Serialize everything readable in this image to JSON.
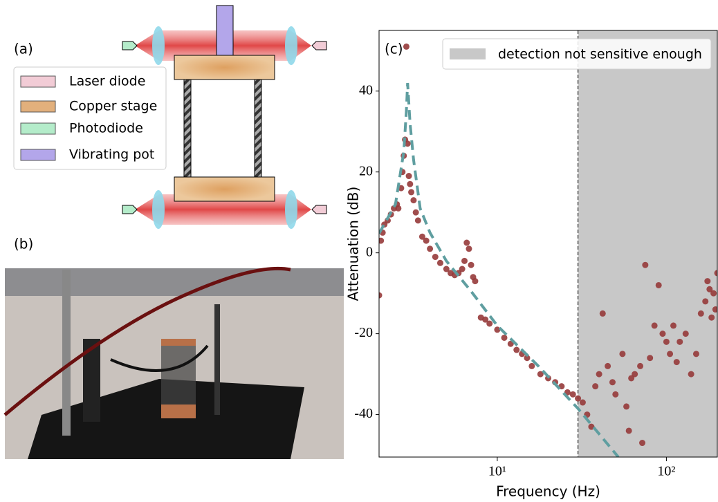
{
  "panels": {
    "a_label": "(a)",
    "b_label": "(b)",
    "legend": [
      {
        "label": "Laser diode",
        "color": "#f2ccd6"
      },
      {
        "label": "Copper stage",
        "color": "#e2b07c"
      },
      {
        "label": "Photodiode",
        "color": "#b4ecca"
      },
      {
        "label": "Vibrating pot",
        "color": "#b3a6ea"
      }
    ]
  },
  "chart_data": {
    "type": "scatter",
    "panel_label": "(c)",
    "x_label": "Frequency (Hz)",
    "y_label": "Attenuation (dB)",
    "xscale": "log",
    "xlim": [
      2,
      200
    ],
    "ylim": [
      -50.5,
      55
    ],
    "xticks": [
      {
        "value": 10,
        "label": "10¹"
      },
      {
        "value": 100,
        "label": "10²"
      }
    ],
    "yticks": [
      -40,
      -20,
      0,
      20,
      40
    ],
    "shaded_region": {
      "x": [
        30,
        200
      ],
      "label": "detection not sensitive enough",
      "color": "#c8c8c8"
    },
    "vline": 30,
    "legend_position": "upper right",
    "series": [
      {
        "type": "scatter",
        "color": "#963a3a",
        "x": [
          2,
          2.05,
          2.1,
          2.15,
          2.25,
          2.35,
          2.45,
          2.55,
          2.6,
          2.7,
          2.75,
          2.8,
          2.85,
          2.9,
          2.95,
          3.0,
          3.05,
          3.1,
          3.2,
          3.3,
          3.4,
          3.6,
          3.8,
          4,
          4.3,
          4.6,
          5,
          5.3,
          5.6,
          5.9,
          6.2,
          6.4,
          6.6,
          6.8,
          7,
          7.2,
          7.4,
          8,
          8.5,
          9,
          10,
          11,
          12,
          13,
          14,
          15,
          16,
          18,
          20,
          22,
          24,
          26,
          28,
          30,
          32,
          34,
          36,
          38,
          40,
          42,
          45,
          48,
          50,
          55,
          58,
          60,
          62,
          65,
          70,
          72,
          75,
          80,
          85,
          90,
          95,
          100,
          105,
          110,
          115,
          120,
          130,
          140,
          150,
          160,
          170,
          175,
          180,
          185,
          190,
          195,
          200
        ],
        "values": [
          -10.5,
          3,
          5,
          7,
          8,
          9.5,
          11,
          12,
          11,
          16,
          20,
          24,
          28,
          51,
          27,
          19,
          17,
          15,
          13,
          10,
          8,
          4,
          3,
          1,
          -1,
          -2.5,
          -4,
          -5,
          -5.5,
          -5,
          -4,
          -2,
          2.5,
          1,
          -3,
          -6,
          -7,
          -16,
          -16.5,
          -17.5,
          -19,
          -21,
          -22.5,
          -24,
          -25,
          -26,
          -28,
          -30,
          -31,
          -32,
          -33,
          -34.5,
          -35,
          -36,
          -37,
          -40,
          -43,
          -33,
          -30,
          -15,
          -28,
          -32,
          -35,
          -25,
          -38,
          -44,
          -31,
          -30,
          -28,
          -47,
          -3,
          -26,
          -18,
          -8,
          -20,
          -22,
          -25,
          -18,
          -27,
          -22,
          -20,
          -30,
          -25,
          -15,
          -12,
          -7,
          -9,
          -16,
          -10,
          -14,
          -5
        ]
      },
      {
        "type": "line",
        "color": "#5f9ea0",
        "x": [
          2,
          2.5,
          2.8,
          2.9,
          2.95,
          3.05,
          3.2,
          3.5,
          4,
          5,
          7,
          10,
          17.5,
          30,
          52
        ],
        "values": [
          4.8,
          12,
          25,
          35,
          42,
          32,
          23,
          11,
          5,
          -2,
          -9.5,
          -18,
          -28,
          -38.5,
          -50.5
        ]
      }
    ]
  }
}
